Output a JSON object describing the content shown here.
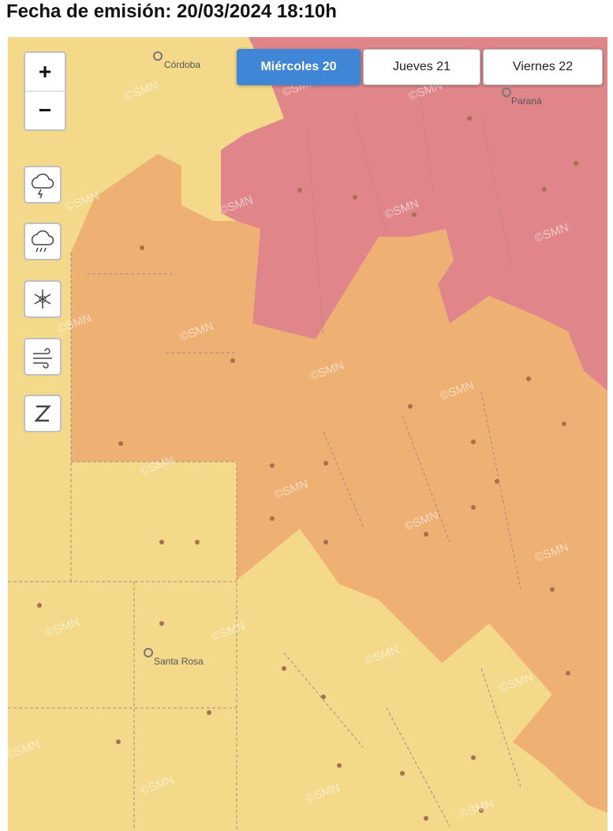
{
  "header": {
    "title": "Fecha de emisión: 20/03/2024 18:10h"
  },
  "days": [
    "Miércoles 20",
    "Jueves 21",
    "Viernes 22"
  ],
  "zoom": {
    "in": "+",
    "out": "−"
  },
  "cities": [
    "Córdoba",
    "Paraná",
    "Santa Rosa"
  ],
  "watermark": "©SMN"
}
